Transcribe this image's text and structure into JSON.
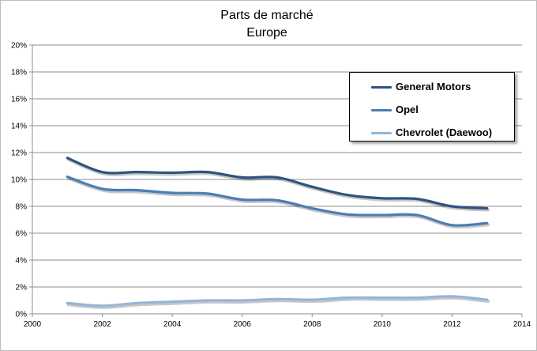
{
  "chart_data": {
    "type": "line",
    "title": [
      "Parts de marché",
      "Europe"
    ],
    "xlabel": "",
    "ylabel": "",
    "xlim": [
      2000,
      2014
    ],
    "ylim": [
      0,
      20
    ],
    "x_ticks": [
      "2000",
      "2002",
      "2004",
      "2006",
      "2008",
      "2010",
      "2012",
      "2014"
    ],
    "y_ticks": [
      "0%",
      "2%",
      "4%",
      "6%",
      "8%",
      "10%",
      "12%",
      "14%",
      "16%",
      "18%",
      "20%"
    ],
    "grid": true,
    "legend_position": "top-right",
    "x": [
      2001,
      2002,
      2003,
      2004,
      2005,
      2006,
      2007,
      2008,
      2009,
      2010,
      2011,
      2012,
      2013
    ],
    "series": [
      {
        "name": "General Motors",
        "color": "#2f5380",
        "values": [
          11.6,
          10.55,
          10.55,
          10.5,
          10.55,
          10.15,
          10.15,
          9.45,
          8.85,
          8.6,
          8.55,
          8.0,
          7.85
        ]
      },
      {
        "name": "Opel",
        "color": "#4a7eb4",
        "values": [
          10.2,
          9.3,
          9.2,
          9.0,
          8.95,
          8.5,
          8.45,
          7.85,
          7.4,
          7.35,
          7.35,
          6.6,
          6.75
        ]
      },
      {
        "name": "Chevrolet (Daewoo)",
        "color": "#94b6d8",
        "values": [
          0.8,
          0.6,
          0.8,
          0.9,
          1.0,
          1.0,
          1.1,
          1.05,
          1.2,
          1.2,
          1.2,
          1.3,
          1.05
        ]
      }
    ]
  }
}
